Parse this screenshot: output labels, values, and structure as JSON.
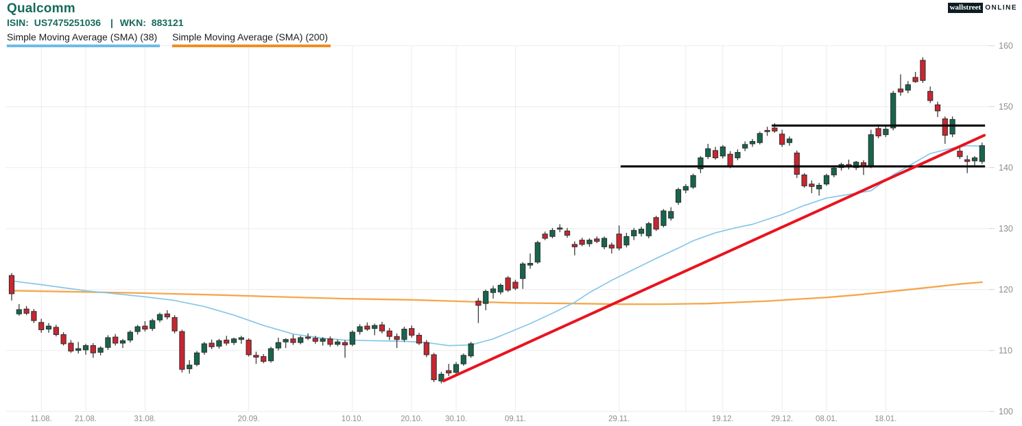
{
  "header": {
    "title": "Qualcomm",
    "title_color": "#166a5b",
    "isin_label": "ISIN:",
    "isin_value": "US7475251036",
    "separator": "|",
    "wkn_label": "WKN:",
    "wkn_value": "883121"
  },
  "legend": [
    {
      "label": "Simple Moving Average (SMA) (38)",
      "color": "#6cbce6"
    },
    {
      "label": "Simple Moving Average (SMA) (200)",
      "color": "#ef8f21"
    }
  ],
  "logo": {
    "part1": "wallstreet",
    "part2": "ONLINE",
    "bg": "#0d1e23"
  },
  "chart_data": {
    "type": "candlestick",
    "title": "Qualcomm",
    "y_axis": {
      "min": 100,
      "max": 160,
      "side": "right",
      "ticks": [
        100,
        110,
        120,
        130,
        140,
        150,
        160
      ]
    },
    "x_axis": {
      "ticks": [
        {
          "index": 4,
          "label": "11.08."
        },
        {
          "index": 10,
          "label": "21.08."
        },
        {
          "index": 18,
          "label": "31.08."
        },
        {
          "index": 32,
          "label": "20.09."
        },
        {
          "index": 46,
          "label": "10.10."
        },
        {
          "index": 54,
          "label": "20.10."
        },
        {
          "index": 60,
          "label": "30.10."
        },
        {
          "index": 68,
          "label": "09.11."
        },
        {
          "index": 82,
          "label": "29.11."
        },
        {
          "index": 91,
          "label": ""
        },
        {
          "index": 96,
          "label": "19.12."
        },
        {
          "index": 104,
          "label": "29.12."
        },
        {
          "index": 110,
          "label": "08.01."
        },
        {
          "index": 118,
          "label": "18.01."
        }
      ]
    },
    "candles_format": [
      "open",
      "high",
      "low",
      "close"
    ],
    "candles": [
      [
        122.3,
        122.7,
        118.2,
        119.3
      ],
      [
        116.0,
        117.6,
        115.7,
        116.7
      ],
      [
        116.8,
        117.3,
        115.8,
        116.1
      ],
      [
        116.4,
        116.8,
        114.5,
        114.9
      ],
      [
        114.6,
        115.2,
        112.9,
        113.4
      ],
      [
        113.5,
        114.5,
        112.9,
        114.0
      ],
      [
        113.8,
        114.2,
        112.3,
        112.6
      ],
      [
        112.6,
        113.0,
        110.8,
        111.1
      ],
      [
        111.2,
        111.7,
        109.6,
        109.9
      ],
      [
        110.0,
        111.4,
        109.5,
        110.3
      ],
      [
        110.1,
        111.1,
        109.3,
        110.8
      ],
      [
        110.8,
        111.2,
        108.8,
        109.6
      ],
      [
        109.7,
        110.7,
        109.2,
        110.4
      ],
      [
        110.5,
        112.5,
        110.1,
        112.1
      ],
      [
        112.2,
        112.7,
        110.8,
        111.2
      ],
      [
        111.2,
        111.9,
        110.4,
        111.6
      ],
      [
        111.7,
        113.3,
        111.3,
        113.0
      ],
      [
        113.1,
        114.2,
        112.6,
        113.9
      ],
      [
        114.0,
        114.8,
        113.1,
        113.5
      ],
      [
        113.6,
        115.2,
        113.2,
        114.9
      ],
      [
        115.0,
        116.2,
        114.6,
        115.9
      ],
      [
        116.0,
        116.6,
        115.1,
        115.5
      ],
      [
        115.4,
        115.8,
        112.8,
        113.2
      ],
      [
        113.1,
        113.4,
        106.4,
        106.9
      ],
      [
        107.0,
        108.4,
        106.2,
        107.6
      ],
      [
        107.7,
        109.9,
        107.4,
        109.6
      ],
      [
        109.7,
        111.4,
        109.3,
        111.1
      ],
      [
        111.2,
        111.8,
        110.2,
        110.6
      ],
      [
        110.7,
        111.9,
        110.3,
        111.6
      ],
      [
        111.7,
        112.4,
        110.8,
        111.2
      ],
      [
        111.3,
        112.1,
        110.9,
        111.9
      ],
      [
        111.8,
        112.4,
        111.1,
        112.1
      ],
      [
        111.7,
        112.0,
        109.0,
        109.3
      ],
      [
        109.2,
        109.8,
        107.8,
        108.9
      ],
      [
        109.0,
        109.4,
        107.9,
        108.2
      ],
      [
        108.3,
        110.6,
        108.0,
        110.3
      ],
      [
        110.4,
        112.1,
        110.0,
        111.3
      ],
      [
        111.4,
        112.0,
        110.4,
        111.8
      ],
      [
        111.9,
        112.6,
        110.9,
        111.3
      ],
      [
        111.3,
        112.4,
        111.0,
        112.1
      ],
      [
        112.2,
        112.8,
        111.7,
        112.0
      ],
      [
        112.0,
        112.4,
        111.1,
        111.5
      ],
      [
        111.5,
        112.2,
        110.8,
        111.9
      ],
      [
        111.9,
        112.3,
        110.6,
        111.0
      ],
      [
        111.0,
        111.8,
        110.7,
        111.4
      ],
      [
        111.3,
        111.7,
        108.8,
        110.9
      ],
      [
        111.0,
        113.3,
        110.7,
        113.0
      ],
      [
        113.1,
        114.3,
        112.6,
        113.9
      ],
      [
        114.0,
        114.6,
        113.2,
        113.5
      ],
      [
        113.6,
        114.4,
        112.5,
        114.1
      ],
      [
        114.2,
        114.7,
        112.8,
        113.2
      ],
      [
        113.2,
        113.7,
        111.7,
        112.3
      ],
      [
        112.3,
        112.8,
        110.4,
        111.8
      ],
      [
        111.8,
        113.9,
        111.4,
        113.5
      ],
      [
        113.6,
        114.1,
        112.1,
        112.5
      ],
      [
        112.5,
        112.9,
        110.9,
        111.2
      ],
      [
        111.3,
        111.7,
        108.9,
        109.3
      ],
      [
        109.3,
        109.6,
        104.8,
        105.2
      ],
      [
        105.0,
        106.5,
        104.6,
        106.1
      ],
      [
        106.7,
        107.8,
        105.8,
        106.3
      ],
      [
        106.4,
        108.1,
        106.1,
        107.7
      ],
      [
        107.8,
        109.5,
        107.5,
        109.2
      ],
      [
        109.1,
        111.4,
        108.8,
        111.1
      ],
      [
        118.1,
        118.6,
        114.5,
        117.4
      ],
      [
        117.7,
        120.0,
        116.6,
        119.7
      ],
      [
        119.5,
        120.6,
        118.5,
        120.1
      ],
      [
        119.6,
        121.0,
        119.2,
        120.7
      ],
      [
        121.9,
        122.2,
        119.6,
        119.9
      ],
      [
        121.2,
        121.6,
        119.9,
        120.2
      ],
      [
        121.8,
        124.5,
        120.1,
        124.2
      ],
      [
        124.0,
        125.9,
        123.4,
        124.3
      ],
      [
        124.5,
        128.0,
        124.2,
        127.7
      ],
      [
        129.1,
        129.5,
        128.1,
        128.4
      ],
      [
        128.7,
        130.1,
        128.4,
        129.7
      ],
      [
        129.9,
        130.7,
        129.4,
        130.1
      ],
      [
        129.6,
        130.1,
        128.5,
        128.9
      ],
      [
        127.4,
        127.9,
        125.6,
        127.0
      ],
      [
        128.1,
        128.5,
        127.1,
        127.4
      ],
      [
        127.5,
        128.4,
        127.0,
        128.1
      ],
      [
        128.3,
        128.7,
        127.6,
        127.9
      ],
      [
        127.0,
        128.7,
        126.6,
        128.4
      ],
      [
        127.3,
        127.7,
        125.9,
        126.8
      ],
      [
        129.1,
        130.5,
        126.4,
        126.8
      ],
      [
        127.3,
        129.3,
        126.9,
        128.7
      ],
      [
        128.8,
        130.1,
        128.1,
        129.7
      ],
      [
        129.2,
        130.3,
        128.7,
        129.9
      ],
      [
        128.8,
        131.1,
        128.4,
        130.8
      ],
      [
        131.8,
        132.1,
        129.6,
        129.9
      ],
      [
        130.5,
        133.2,
        130.2,
        132.9
      ],
      [
        131.7,
        133.5,
        131.3,
        132.8
      ],
      [
        134.3,
        136.7,
        133.9,
        136.4
      ],
      [
        136.3,
        137.3,
        135.8,
        136.9
      ],
      [
        136.8,
        139.0,
        136.5,
        138.7
      ],
      [
        139.8,
        141.9,
        139.1,
        141.6
      ],
      [
        141.8,
        143.9,
        141.4,
        143.1
      ],
      [
        142.8,
        143.4,
        141.3,
        141.6
      ],
      [
        141.9,
        143.7,
        141.5,
        143.4
      ],
      [
        142.2,
        142.7,
        139.9,
        140.3
      ],
      [
        141.6,
        143.0,
        141.2,
        142.5
      ],
      [
        143.2,
        144.3,
        142.7,
        143.8
      ],
      [
        143.9,
        144.7,
        143.4,
        144.3
      ],
      [
        144.1,
        145.9,
        143.8,
        145.6
      ],
      [
        146.1,
        146.7,
        145.2,
        145.9
      ],
      [
        146.5,
        147.3,
        145.7,
        146.0
      ],
      [
        145.5,
        146.2,
        143.4,
        143.8
      ],
      [
        144.1,
        145.1,
        143.6,
        144.7
      ],
      [
        142.4,
        142.8,
        138.3,
        138.9
      ],
      [
        138.8,
        139.1,
        136.7,
        137.0
      ],
      [
        137.3,
        137.9,
        135.8,
        136.9
      ],
      [
        136.5,
        137.5,
        135.4,
        137.1
      ],
      [
        137.3,
        139.0,
        137.0,
        138.7
      ],
      [
        138.8,
        140.2,
        138.4,
        139.9
      ],
      [
        140.0,
        140.8,
        139.5,
        140.5
      ],
      [
        140.5,
        141.3,
        139.7,
        140.2
      ],
      [
        140.0,
        141.1,
        139.6,
        140.9
      ],
      [
        140.8,
        141.2,
        138.8,
        140.1
      ],
      [
        140.3,
        146.2,
        139.9,
        145.4
      ],
      [
        146.4,
        147.1,
        144.8,
        145.2
      ],
      [
        145.4,
        146.9,
        145.0,
        146.3
      ],
      [
        146.5,
        152.6,
        146.1,
        152.2
      ],
      [
        152.9,
        155.3,
        151.8,
        152.4
      ],
      [
        152.7,
        154.2,
        152.2,
        153.6
      ],
      [
        154.8,
        155.7,
        153.9,
        154.1
      ],
      [
        157.6,
        158.1,
        153.9,
        154.3
      ],
      [
        152.5,
        153.3,
        150.6,
        151.0
      ],
      [
        150.3,
        150.8,
        148.3,
        149.3
      ],
      [
        148.0,
        148.4,
        143.9,
        145.3
      ],
      [
        145.5,
        148.4,
        145.0,
        147.9
      ],
      [
        142.7,
        143.3,
        141.4,
        141.8
      ],
      [
        141.3,
        142.0,
        139.1,
        141.0
      ],
      [
        141.1,
        141.9,
        140.3,
        141.6
      ],
      [
        141.0,
        144.1,
        140.6,
        143.6
      ]
    ],
    "series": [
      {
        "name": "Simple Moving Average (SMA) (38)",
        "color": "#85c7e9",
        "anchors": [
          [
            0,
            121.4
          ],
          [
            4,
            120.8
          ],
          [
            10,
            119.8
          ],
          [
            14,
            119.3
          ],
          [
            18,
            118.8
          ],
          [
            22,
            118.2
          ],
          [
            26,
            117.2
          ],
          [
            30,
            115.8
          ],
          [
            34,
            114.1
          ],
          [
            38,
            112.7
          ],
          [
            42,
            112.0
          ],
          [
            45,
            111.7
          ],
          [
            49,
            111.6
          ],
          [
            53,
            111.5
          ],
          [
            56,
            111.3
          ],
          [
            59,
            110.8
          ],
          [
            62,
            110.9
          ],
          [
            65,
            111.9
          ],
          [
            67,
            112.9
          ],
          [
            70,
            114.4
          ],
          [
            73,
            116.1
          ],
          [
            76,
            117.9
          ],
          [
            78,
            119.5
          ],
          [
            81,
            121.5
          ],
          [
            84,
            123.3
          ],
          [
            87,
            125.1
          ],
          [
            90,
            126.8
          ],
          [
            92,
            128.0
          ],
          [
            95,
            129.3
          ],
          [
            98,
            130.2
          ],
          [
            100,
            130.7
          ],
          [
            104,
            132.3
          ],
          [
            107,
            133.8
          ],
          [
            110,
            135.0
          ],
          [
            113,
            135.6
          ],
          [
            116,
            136.2
          ],
          [
            119,
            138.8
          ],
          [
            121,
            140.2
          ],
          [
            124,
            142.3
          ],
          [
            127,
            143.2
          ],
          [
            129,
            143.6
          ],
          [
            131,
            143.5
          ]
        ]
      },
      {
        "name": "Simple Moving Average (SMA) (200)",
        "color": "#f6a64b",
        "anchors": [
          [
            0,
            119.8
          ],
          [
            10,
            119.6
          ],
          [
            18,
            119.4
          ],
          [
            28,
            119.1
          ],
          [
            36,
            118.8
          ],
          [
            45,
            118.5
          ],
          [
            54,
            118.3
          ],
          [
            62,
            118.0
          ],
          [
            68,
            117.8
          ],
          [
            76,
            117.7
          ],
          [
            82,
            117.6
          ],
          [
            88,
            117.6
          ],
          [
            94,
            117.7
          ],
          [
            98,
            117.9
          ],
          [
            102,
            118.1
          ],
          [
            106,
            118.4
          ],
          [
            110,
            118.7
          ],
          [
            114,
            119.1
          ],
          [
            118,
            119.6
          ],
          [
            122,
            120.1
          ],
          [
            125,
            120.5
          ],
          [
            128,
            120.9
          ],
          [
            131,
            121.2
          ]
        ]
      }
    ],
    "trendline": {
      "name": "ascending-trendline",
      "color": "#e8131f",
      "from_index": 58.3,
      "from_value": 105.0,
      "to_index": 131.3,
      "to_value": 145.3
    },
    "levels": [
      {
        "name": "resistance-level",
        "value": 146.9,
        "from_index": 102.6,
        "to_index": 131.4
      },
      {
        "name": "support-level",
        "value": 140.2,
        "from_index": 82.2,
        "to_index": 131.4
      }
    ],
    "colors": {
      "up": "#17654d",
      "down": "#c92630",
      "wick": "#3a3a3a",
      "body_stroke": "#2e2e2e",
      "grid": "#ececec",
      "tick": "#d4d4d4",
      "axis_text": "#8e8e8e",
      "level": "#0b0b0b"
    }
  }
}
